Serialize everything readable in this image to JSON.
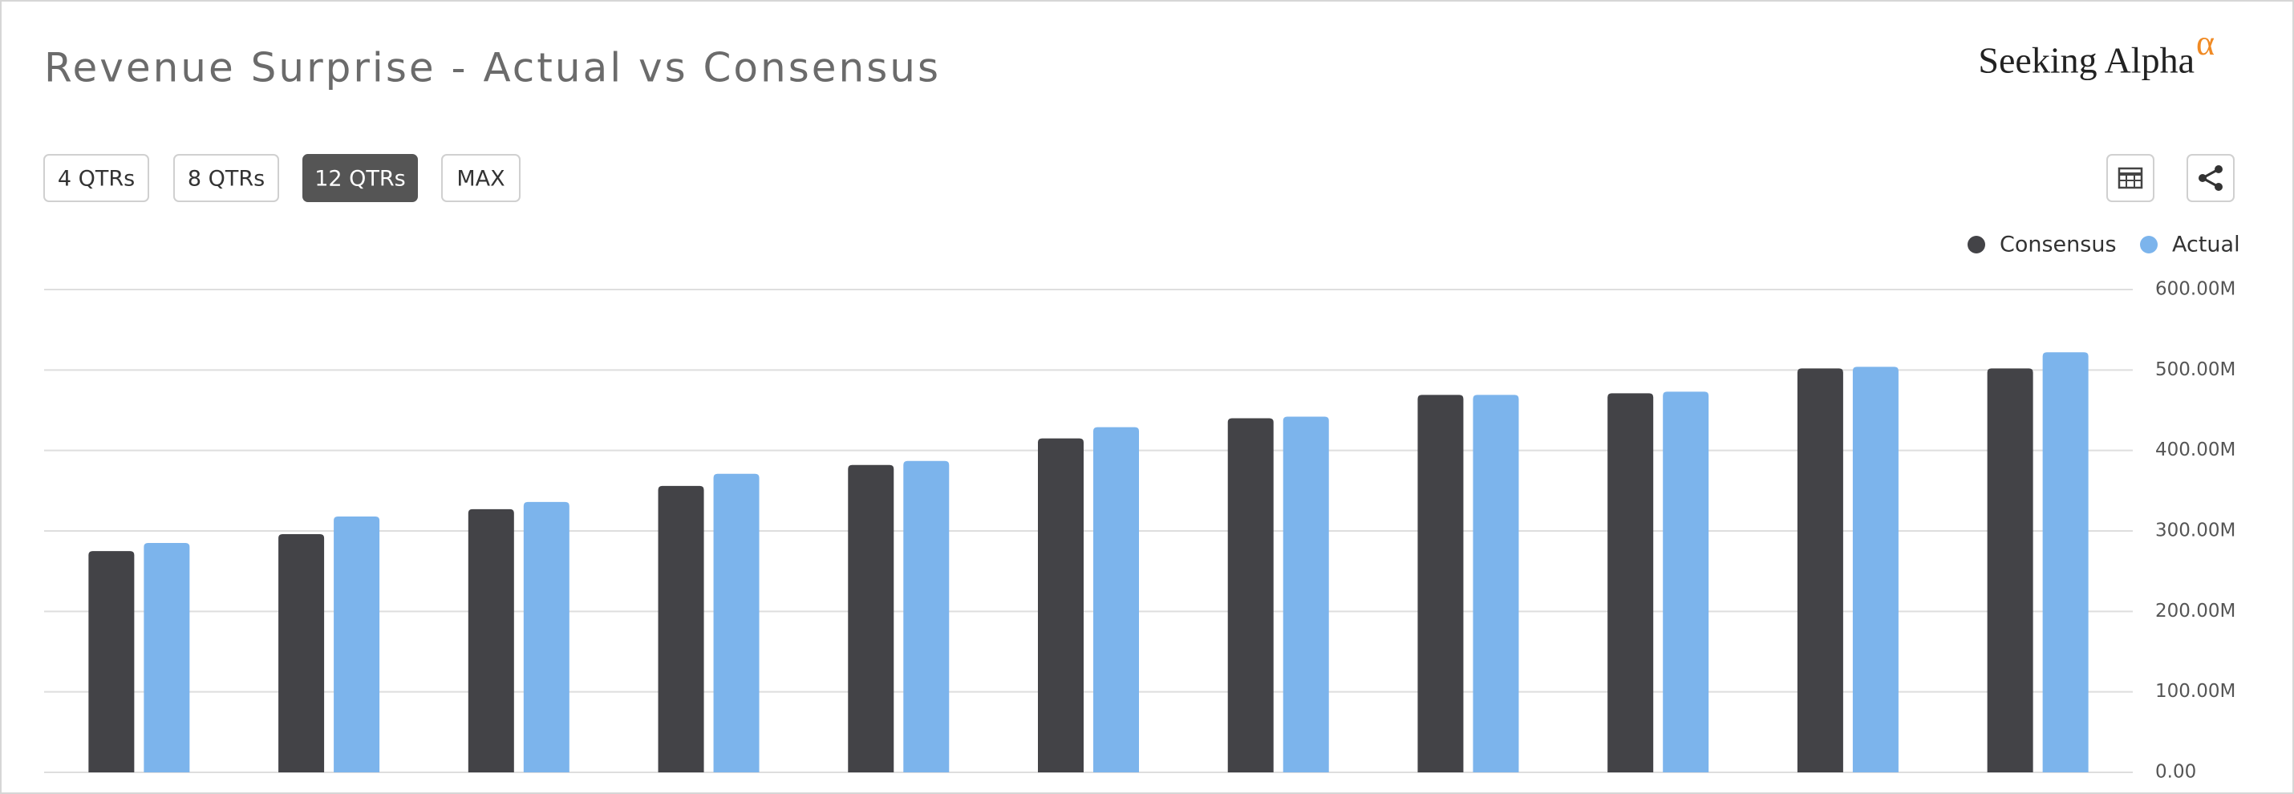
{
  "header": {
    "title": "Revenue Surprise - Actual vs Consensus",
    "logo": "Seeking Alpha",
    "logo_mark": "α"
  },
  "buttons": [
    "4 QTRs",
    "8 QTRs",
    "12 QTRs",
    "MAX"
  ],
  "active_button": "12 QTRs",
  "chart_data": {
    "type": "bar",
    "categories": [
      null,
      null,
      null,
      null,
      null,
      null,
      null,
      null,
      null,
      null,
      null
    ],
    "series": [
      {
        "name": "Consensus",
        "color": "#434347",
        "values": [
          275,
          296,
          327,
          356,
          382,
          415,
          440,
          469,
          471,
          502,
          502
        ]
      },
      {
        "name": "Actual",
        "color": "#7cb4ec",
        "values": [
          285,
          318,
          336,
          371,
          387,
          429,
          442,
          469,
          473,
          504,
          522
        ]
      }
    ],
    "ylim": [
      0,
      600
    ],
    "yticks": [
      {
        "value": 0,
        "label": "0.00"
      },
      {
        "value": 100,
        "label": "100.00M"
      },
      {
        "value": 200,
        "label": "200.00M"
      },
      {
        "value": 300,
        "label": "300.00M"
      },
      {
        "value": 400,
        "label": "400.00M"
      },
      {
        "value": 500,
        "label": "500.00M"
      },
      {
        "value": 600,
        "label": "600.00M"
      }
    ],
    "grid": true,
    "legend": "top-right"
  }
}
